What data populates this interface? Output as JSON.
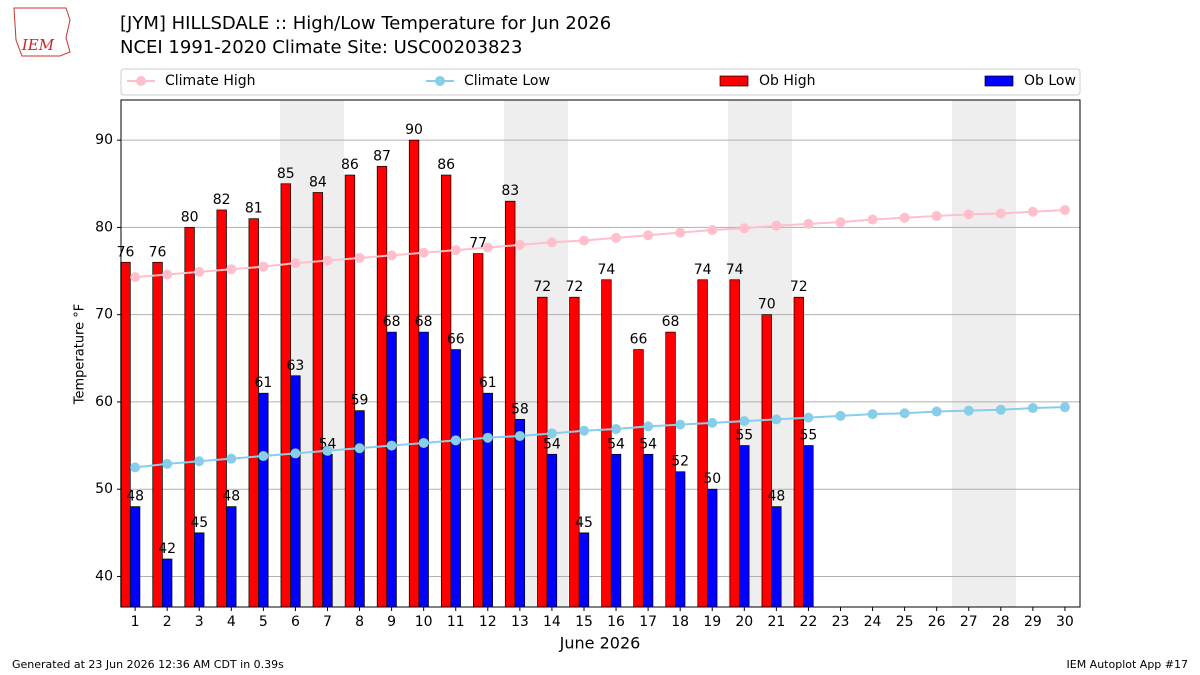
{
  "chart_data": {
    "type": "bar",
    "logo_text": "IEM",
    "title": "[JYM] HILLSDALE :: High/Low Temperature for Jun 2026",
    "subtitle": "NCEI 1991-2020 Climate Site: USC00203823",
    "xlabel": "June 2026",
    "ylabel": "Temperature °F",
    "footer_left": "Generated at 23 Jun 2026 12:36 AM CDT in 0.39s",
    "footer_right": "IEM Autoplot App #17",
    "x": [
      1,
      2,
      3,
      4,
      5,
      6,
      7,
      8,
      9,
      10,
      11,
      12,
      13,
      14,
      15,
      16,
      17,
      18,
      19,
      20,
      21,
      22,
      23,
      24,
      25,
      26,
      27,
      28,
      29,
      30
    ],
    "xlim": [
      0.56,
      30.47
    ],
    "xticks": [
      1,
      2,
      3,
      4,
      5,
      6,
      7,
      8,
      9,
      10,
      11,
      12,
      13,
      14,
      15,
      16,
      17,
      18,
      19,
      20,
      21,
      22,
      23,
      24,
      25,
      26,
      27,
      28,
      29,
      30
    ],
    "ylim": [
      36.5,
      94.6
    ],
    "yticks": [
      40,
      50,
      60,
      70,
      80,
      90
    ],
    "grid": true,
    "legend_position": "top",
    "series": [
      {
        "name": "Climate High",
        "color": "#ffc0cb",
        "type": "line",
        "values": [
          74.3,
          74.6,
          74.9,
          75.2,
          75.5,
          75.9,
          76.2,
          76.5,
          76.8,
          77.1,
          77.4,
          77.7,
          78.0,
          78.3,
          78.5,
          78.8,
          79.1,
          79.4,
          79.7,
          79.9,
          80.2,
          80.4,
          80.6,
          80.9,
          81.1,
          81.3,
          81.5,
          81.6,
          81.8,
          82.0
        ]
      },
      {
        "name": "Climate Low",
        "color": "#87ceeb",
        "type": "line",
        "values": [
          52.5,
          52.9,
          53.2,
          53.5,
          53.8,
          54.1,
          54.4,
          54.7,
          55.0,
          55.3,
          55.6,
          55.9,
          56.1,
          56.4,
          56.7,
          56.9,
          57.2,
          57.4,
          57.6,
          57.8,
          58.0,
          58.2,
          58.4,
          58.6,
          58.7,
          58.9,
          59.0,
          59.1,
          59.3,
          59.4
        ]
      },
      {
        "name": "Ob High",
        "color": "#ff0000",
        "type": "bar",
        "values": [
          76,
          76,
          80,
          82,
          81,
          85,
          84,
          86,
          87,
          90,
          86,
          77,
          83,
          72,
          72,
          74,
          66,
          68,
          74,
          74,
          70,
          72,
          null,
          null,
          null,
          null,
          null,
          null,
          null,
          null
        ]
      },
      {
        "name": "Ob Low",
        "color": "#0000ff",
        "type": "bar",
        "values": [
          48,
          42,
          45,
          48,
          61,
          63,
          54,
          59,
          68,
          68,
          66,
          61,
          58,
          54,
          45,
          54,
          54,
          52,
          50,
          55,
          48,
          55,
          null,
          null,
          null,
          null,
          null,
          null,
          null,
          null
        ]
      }
    ]
  }
}
